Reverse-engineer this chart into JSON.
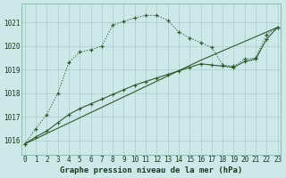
{
  "title": "Graphe pression niveau de la mer (hPa)",
  "background_color": "#cce8e8",
  "grid_color": "#aacccc",
  "line_color": "#2d5a2d",
  "x_labels": [
    "0",
    "1",
    "2",
    "3",
    "4",
    "5",
    "6",
    "7",
    "8",
    "9",
    "10",
    "11",
    "12",
    "13",
    "14",
    "15",
    "16",
    "17",
    "18",
    "19",
    "20",
    "21",
    "22",
    "23"
  ],
  "ylim": [
    1015.4,
    1021.8
  ],
  "yticks": [
    1016,
    1017,
    1018,
    1019,
    1020,
    1021
  ],
  "xlim": [
    -0.3,
    23.3
  ],
  "series1_x": [
    0,
    1,
    2,
    3,
    4,
    5,
    6,
    7,
    8,
    9,
    10,
    11,
    12,
    13,
    14,
    15,
    16,
    17,
    18,
    19,
    20,
    21,
    22,
    23
  ],
  "series1_y": [
    1015.85,
    1016.5,
    1017.1,
    1018.0,
    1019.3,
    1019.75,
    1019.85,
    1020.0,
    1020.9,
    1021.05,
    1021.2,
    1021.3,
    1021.3,
    1021.1,
    1020.6,
    1020.35,
    1020.15,
    1019.95,
    1019.2,
    1019.15,
    1019.45,
    1019.5,
    1020.5,
    1020.8
  ],
  "series2_x": [
    0,
    1,
    2,
    3,
    4,
    5,
    6,
    7,
    8,
    9,
    10,
    11,
    12,
    13,
    14,
    15,
    16,
    17,
    18,
    19,
    20,
    21,
    22,
    23
  ],
  "series2_y": [
    1015.85,
    1016.15,
    1016.4,
    1016.75,
    1017.1,
    1017.35,
    1017.55,
    1017.75,
    1017.95,
    1018.15,
    1018.35,
    1018.5,
    1018.65,
    1018.8,
    1018.95,
    1019.1,
    1019.25,
    1019.2,
    1019.15,
    1019.1,
    1019.35,
    1019.45,
    1020.3,
    1020.8
  ],
  "series3_x": [
    0,
    16,
    23
  ],
  "series3_y": [
    1015.85,
    1019.4,
    1020.8
  ],
  "marker_size": 3.5,
  "tick_fontsize": 5.5,
  "label_fontsize": 6.5
}
